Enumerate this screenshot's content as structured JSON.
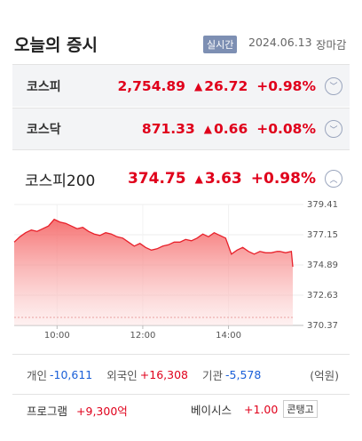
{
  "header": {
    "title": "오늘의 증시",
    "badge": "실시간",
    "date": "2024.06.13",
    "status": "장마감"
  },
  "indices": [
    {
      "name": "코스피",
      "value": "2,754.89",
      "change": "26.72",
      "percent": "+0.98%"
    },
    {
      "name": "코스닥",
      "value": "871.33",
      "change": "0.66",
      "percent": "+0.08%"
    },
    {
      "name": "코스피200",
      "value": "374.75",
      "change": "3.63",
      "percent": "+0.98%"
    }
  ],
  "chart_data": {
    "type": "line",
    "color": "#e8202a",
    "x": [
      540,
      548,
      556,
      564,
      572,
      580,
      588,
      596,
      604,
      612,
      620,
      628,
      636,
      644,
      652,
      660,
      668,
      676,
      684,
      692,
      700,
      708,
      716,
      724,
      732,
      740,
      748,
      756,
      764,
      772,
      780,
      788,
      796,
      804,
      812,
      820,
      828,
      836,
      844,
      852,
      860,
      868,
      876,
      884,
      892,
      900,
      908,
      912,
      920,
      928,
      930
    ],
    "values": [
      376.6,
      377.0,
      377.3,
      377.5,
      377.4,
      377.6,
      377.8,
      378.3,
      378.1,
      378.0,
      377.8,
      377.6,
      377.7,
      377.4,
      377.2,
      377.1,
      377.3,
      377.2,
      377.0,
      376.9,
      376.6,
      376.3,
      376.5,
      376.2,
      376.0,
      376.1,
      376.3,
      376.4,
      376.6,
      376.6,
      376.8,
      376.7,
      376.9,
      377.2,
      377.0,
      377.3,
      377.1,
      376.9,
      375.7,
      376.0,
      376.2,
      375.9,
      375.7,
      375.9,
      375.8,
      375.8,
      375.9,
      375.9,
      375.8,
      375.9,
      374.75
    ],
    "xlim": [
      540,
      930
    ],
    "xticks": [
      {
        "value": 600,
        "label": "10:00"
      },
      {
        "value": 720,
        "label": "12:00"
      },
      {
        "value": 840,
        "label": "14:00"
      }
    ],
    "ylim": [
      370.37,
      379.41
    ],
    "yticks": [
      379.41,
      377.15,
      374.89,
      372.63,
      370.37
    ],
    "grid": true
  },
  "investors": {
    "items": [
      {
        "label": "개인",
        "value": "-10,611"
      },
      {
        "label": "외국인",
        "value": "+16,308"
      },
      {
        "label": "기관",
        "value": "-5,578"
      }
    ],
    "unit": "(억원)"
  },
  "program": {
    "label": "프로그램",
    "value": "+9,300억"
  },
  "basis": {
    "label": "베이시스",
    "value": "+1.00",
    "button": "콘탱고"
  }
}
